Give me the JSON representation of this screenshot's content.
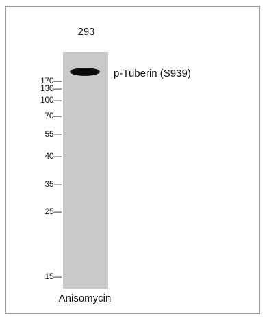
{
  "lane_label": "293",
  "band_label": "p-Tuberin (S939)",
  "treatment_label": "Anisomycin",
  "markers": [
    "170—",
    "130—",
    "100—",
    "70—",
    "55—",
    "40—",
    "35—",
    "25—",
    "15—"
  ],
  "colors": {
    "membrane": "#c9c9c9",
    "band": "#0a0a0a",
    "frame_border": "#9a9a9a"
  }
}
